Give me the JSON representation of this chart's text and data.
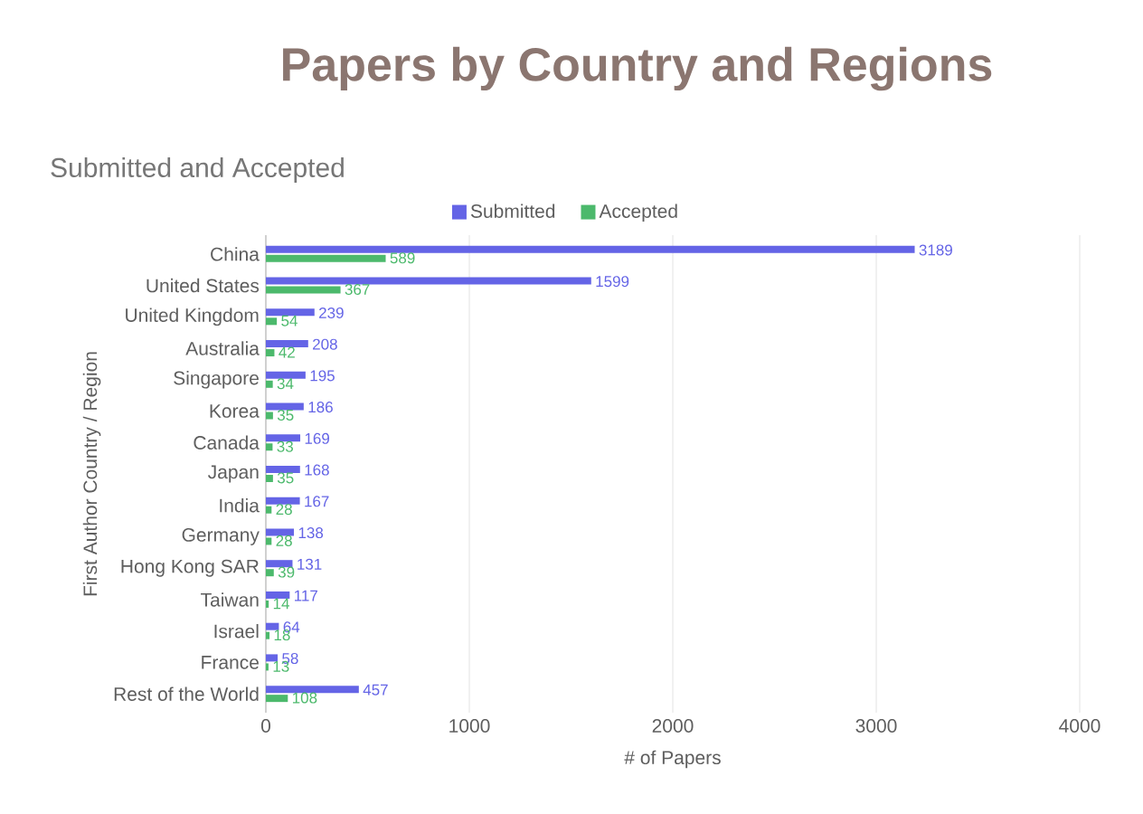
{
  "chart_data": {
    "type": "bar",
    "orientation": "horizontal",
    "title": "Papers by Country and Regions",
    "subtitle": "Submitted and Accepted",
    "xlabel": "# of Papers",
    "ylabel": "First Author Country / Region",
    "categories": [
      "China",
      "United States",
      "United Kingdom",
      "Australia",
      "Singapore",
      "Korea",
      "Canada",
      "Japan",
      "India",
      "Germany",
      "Hong Kong SAR",
      "Taiwan",
      "Israel",
      "France",
      "Rest of the World"
    ],
    "series": [
      {
        "name": "Submitted",
        "color": "#6464e6",
        "values": [
          3189,
          1599,
          239,
          208,
          195,
          186,
          169,
          168,
          167,
          138,
          131,
          117,
          64,
          58,
          457
        ]
      },
      {
        "name": "Accepted",
        "color": "#4cb96c",
        "values": [
          589,
          367,
          54,
          42,
          34,
          35,
          33,
          35,
          28,
          28,
          39,
          14,
          18,
          13,
          108
        ]
      }
    ],
    "xlim": [
      0,
      4000
    ],
    "xticks": [
      0,
      1000,
      2000,
      3000,
      4000
    ],
    "grid": "x",
    "legend": "top",
    "data_labels": true
  }
}
